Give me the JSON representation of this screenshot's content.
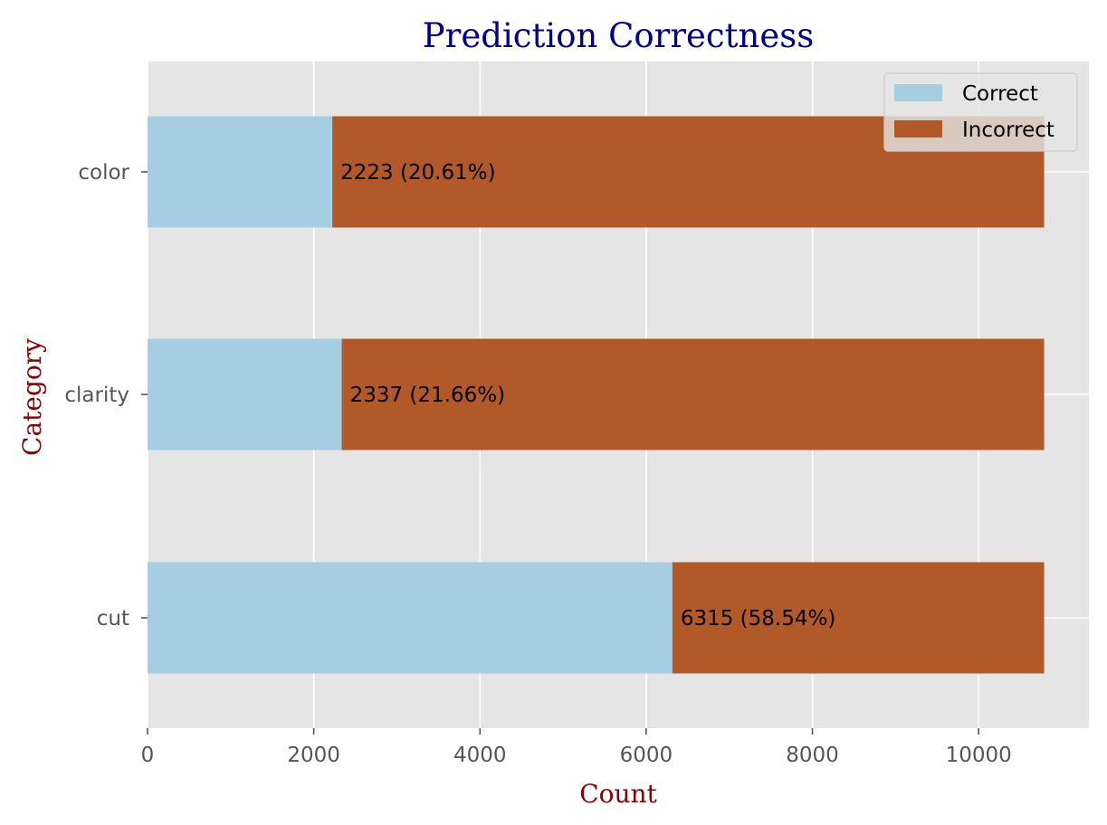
{
  "chart_data": {
    "type": "bar",
    "orientation": "horizontal",
    "stacked": true,
    "title": "Prediction Correctness",
    "xlabel": "Count",
    "ylabel": "Category",
    "categories": [
      "cut",
      "clarity",
      "color"
    ],
    "series": [
      {
        "name": "Correct",
        "values": [
          6315,
          2337,
          2223
        ],
        "color": "#a6cee3"
      },
      {
        "name": "Incorrect",
        "values": [
          4473,
          8451,
          8565
        ],
        "color": "#b15928"
      }
    ],
    "data_labels": [
      "6315 (58.54%)",
      "2337 (21.66%)",
      "2223 (20.61%)"
    ],
    "xlim": [
      0,
      11327
    ],
    "xticks": [
      0,
      2000,
      4000,
      6000,
      8000,
      10000
    ],
    "xtick_labels": [
      "0",
      "2000",
      "4000",
      "6000",
      "8000",
      "10000"
    ],
    "grid": true,
    "legend_position": "top-right",
    "colors": {
      "plot_background": "#e5e5e5",
      "grid": "#ffffff",
      "title": "#00008b",
      "axis_label": "#8b0000",
      "tick_label": "#555555"
    }
  }
}
